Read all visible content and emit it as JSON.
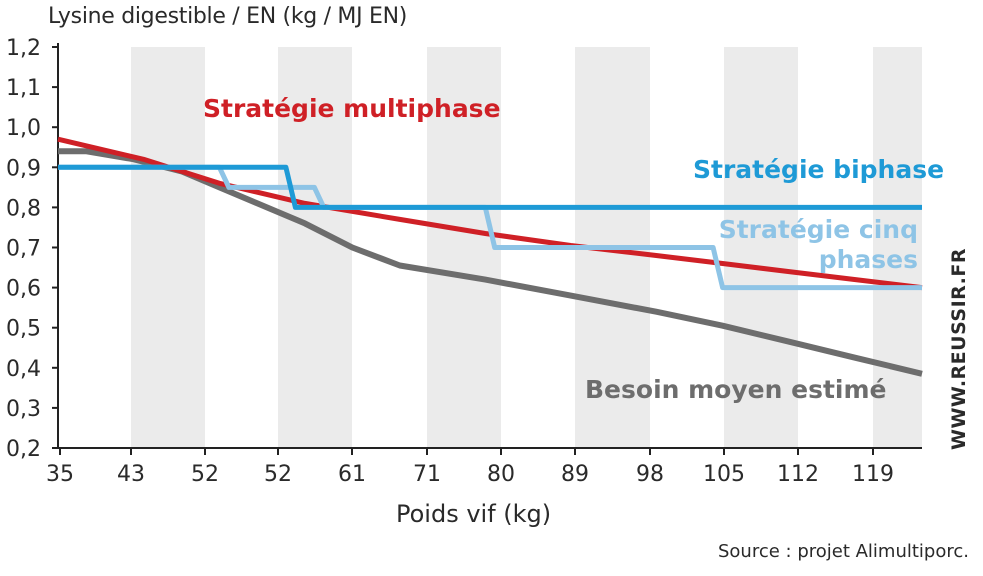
{
  "chart_data": {
    "type": "line",
    "ylabel": "Lysine digestible / EN (kg / MJ EN)",
    "xlabel": "Poids vif (kg)",
    "source": "Source : projet Alimultiporc.",
    "watermark": "WWW.REUSSIR.FR",
    "ylim": [
      0.2,
      1.2
    ],
    "yticks": [
      "0,2",
      "0,3",
      "0,4",
      "0,5",
      "0,6",
      "0,7",
      "0,8",
      "0,9",
      "1,0",
      "1,1",
      "1,2"
    ],
    "xticks": [
      "35",
      "43",
      "52",
      "52",
      "61",
      "71",
      "80",
      "89",
      "98",
      "105",
      "112",
      "119"
    ],
    "grid": "alternating vertical bands",
    "series": [
      {
        "name": "Besoin moyen estimé",
        "color": "#6d6d6d",
        "x": [
          35,
          38,
          43,
          48,
          52,
          56,
          61,
          66,
          71,
          80,
          89,
          98,
          105,
          112,
          119,
          126
        ],
        "y": [
          0.94,
          0.94,
          0.92,
          0.89,
          0.85,
          0.81,
          0.76,
          0.7,
          0.655,
          0.62,
          0.58,
          0.54,
          0.505,
          0.465,
          0.425,
          0.385
        ]
      },
      {
        "name": "Stratégie multiphase",
        "color": "#cf2026",
        "x": [
          35,
          44,
          52,
          61,
          71,
          80,
          89,
          98,
          105,
          112,
          119,
          126
        ],
        "y": [
          0.97,
          0.92,
          0.86,
          0.81,
          0.77,
          0.735,
          0.705,
          0.68,
          0.66,
          0.64,
          0.62,
          0.6
        ]
      },
      {
        "name": "Stratégie cinq phases",
        "color": "#8ec4e6",
        "x": [
          35,
          48,
          52,
          53,
          62,
          63,
          80,
          81,
          104,
          105,
          126
        ],
        "y": [
          0.9,
          0.9,
          0.9,
          0.85,
          0.85,
          0.8,
          0.8,
          0.7,
          0.7,
          0.6,
          0.6
        ]
      },
      {
        "name": "Stratégie biphase",
        "color": "#1e9ad6",
        "x": [
          35,
          59,
          60,
          126
        ],
        "y": [
          0.9,
          0.9,
          0.8,
          0.8
        ]
      }
    ],
    "labels": {
      "multiphase": "Stratégie multiphase",
      "biphase": "Stratégie biphase",
      "cinq_line1": "Stratégie cinq",
      "cinq_line2": "phases",
      "besoin": "Besoin moyen estimé"
    }
  }
}
